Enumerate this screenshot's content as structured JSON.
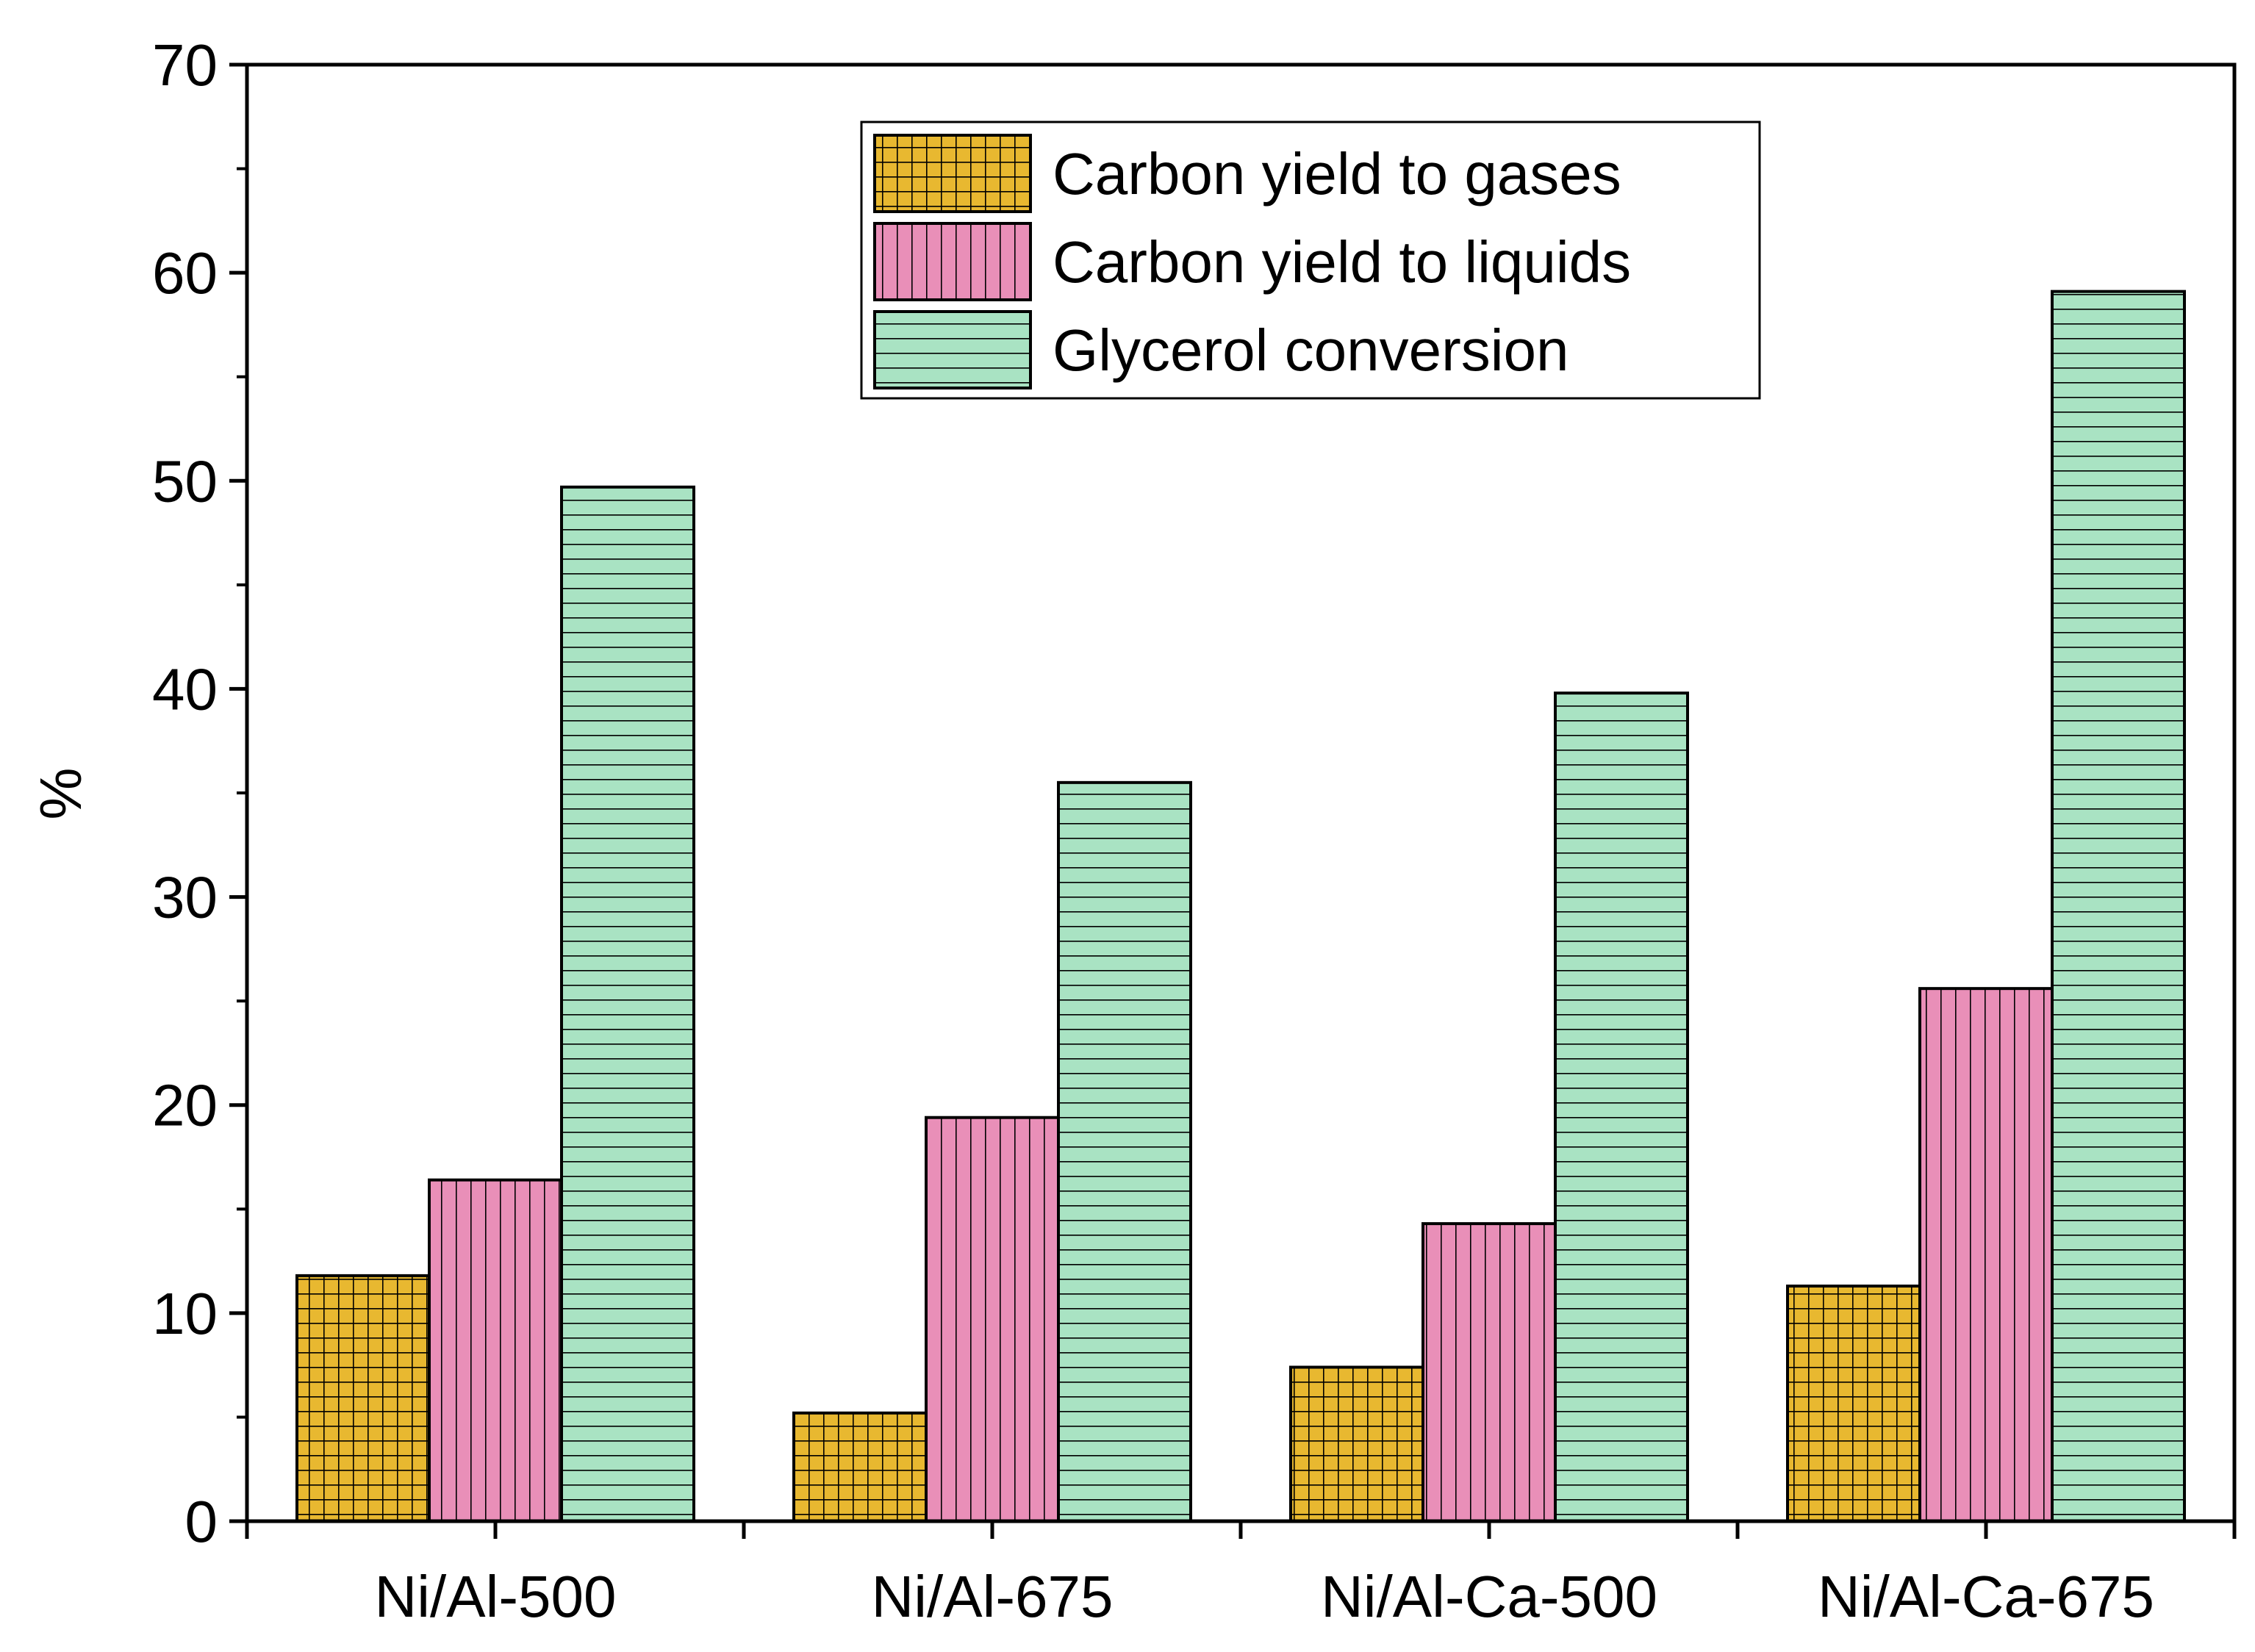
{
  "chart_data": {
    "type": "bar",
    "title": "",
    "xlabel": "",
    "ylabel": "%",
    "ylim": [
      0,
      70
    ],
    "yticks": [
      "0",
      "10",
      "20",
      "30",
      "40",
      "50",
      "60",
      "70"
    ],
    "categories": [
      "Ni/Al-500",
      "Ni/Al-675",
      "Ni/Al-Ca-500",
      "Ni/Al-Ca-675"
    ],
    "series": [
      {
        "name": "Carbon yield to gases",
        "values": [
          11.8,
          5.2,
          7.4,
          11.3
        ],
        "color": "#e8b830",
        "pattern": "grid"
      },
      {
        "name": "Carbon yield to liquids",
        "values": [
          16.4,
          19.4,
          14.3,
          25.6
        ],
        "color": "#e98fb8",
        "pattern": "vertical"
      },
      {
        "name": "Glycerol conversion",
        "values": [
          49.7,
          35.5,
          39.8,
          59.1
        ],
        "color": "#a9e3c3",
        "pattern": "horizontal"
      }
    ],
    "legend_position": "top-center",
    "grid": false
  }
}
